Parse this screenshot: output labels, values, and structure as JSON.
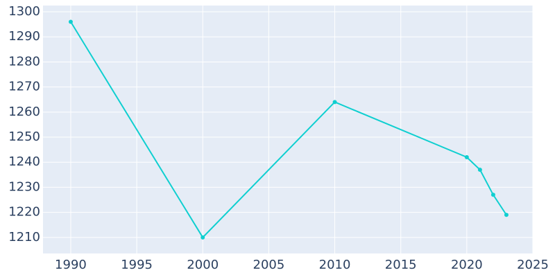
{
  "chart_data": {
    "type": "line",
    "x": [
      1990,
      2000,
      2010,
      2020,
      2021,
      2022,
      2023
    ],
    "series": [
      {
        "color": "#0fcfd0",
        "values": [
          1296,
          1210,
          1264,
          1242,
          1237,
          1227,
          1219
        ]
      }
    ],
    "xlim": [
      1987.9,
      2025
    ],
    "xticks": [
      1990,
      1995,
      2000,
      2005,
      2010,
      2015,
      2020,
      2025
    ],
    "ylim": [
      1203.6,
      1302.5
    ],
    "yticks": [
      1210,
      1220,
      1230,
      1240,
      1250,
      1260,
      1270,
      1280,
      1290,
      1300
    ],
    "grid": true
  }
}
